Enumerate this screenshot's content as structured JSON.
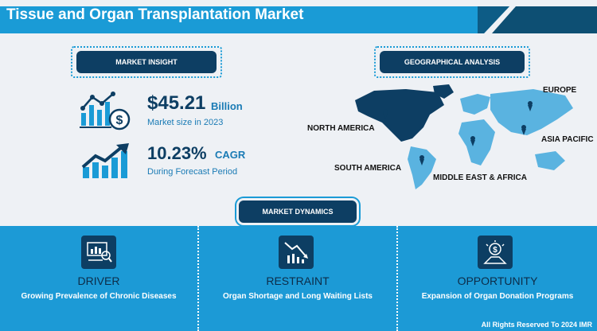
{
  "title": "Tissue and Organ Transplantation Market",
  "market_insight": {
    "heading": "MARKET INSIGHT",
    "size_value": "$45.21",
    "size_unit": "Billion",
    "size_label": "Market size in 2023",
    "cagr_value": "10.23%",
    "cagr_unit": "CAGR",
    "cagr_label": "During Forecast Period"
  },
  "geo": {
    "heading": "GEOGRAPHICAL ANALYSIS",
    "regions": [
      "EUROPE",
      "NORTH AMERICA",
      "ASIA PACIFIC",
      "SOUTH AMERICA",
      "MIDDLE EAST & AFRICA"
    ]
  },
  "dynamics": {
    "heading": "MARKET DYNAMICS",
    "items": [
      {
        "head": "DRIVER",
        "text": "Growing Prevalence of Chronic Diseases",
        "icon": "presentation-chart-icon"
      },
      {
        "head": "RESTRAINT",
        "text": "Organ Shortage and Long Waiting Lists",
        "icon": "declining-chart-icon"
      },
      {
        "head": "OPPORTUNITY",
        "text": "Expansion of Organ Donation Programs",
        "icon": "lightbulb-dollar-icon"
      }
    ]
  },
  "footer": "All Rights Reserved To 2024 IMR",
  "colors": {
    "brand_blue": "#1a9bd6",
    "navy": "#0d3e63",
    "panel": "#1c9ad6"
  }
}
